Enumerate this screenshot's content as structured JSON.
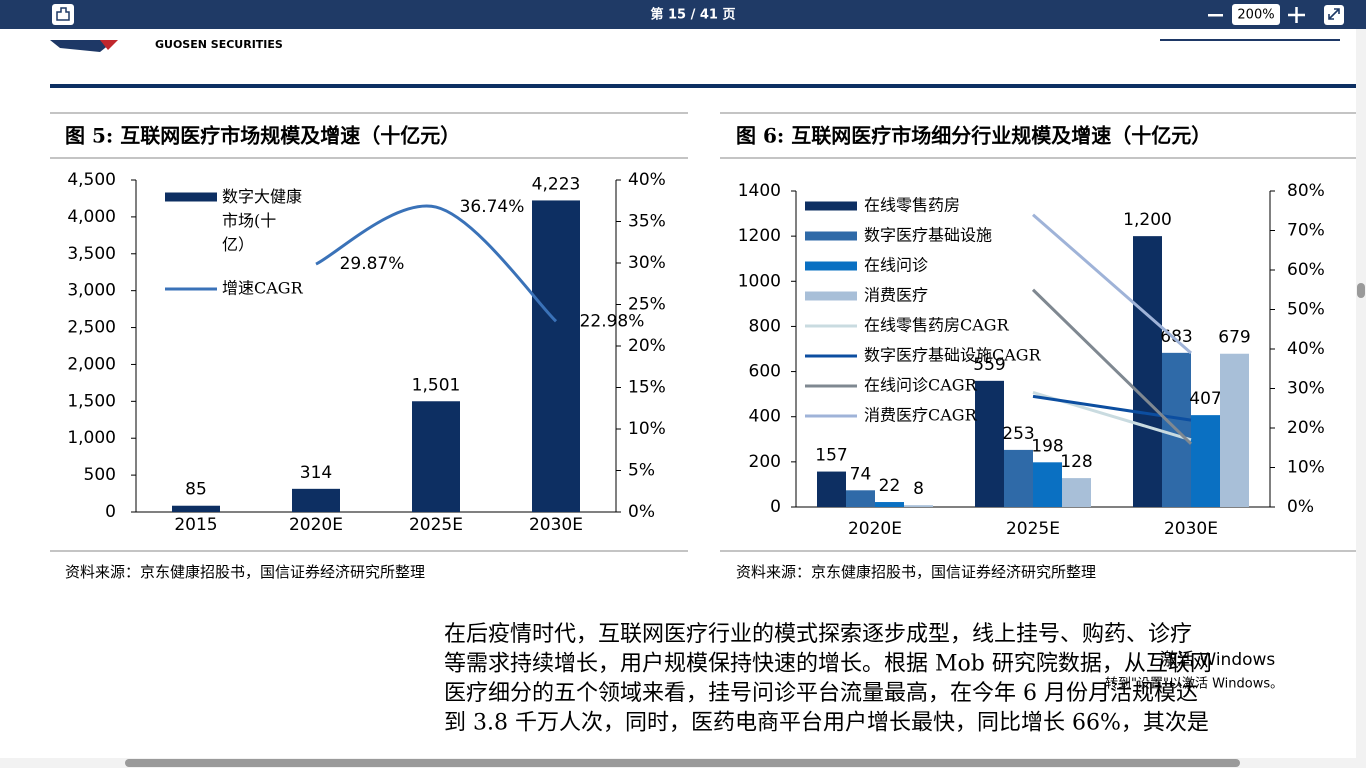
{
  "toolbar": {
    "page_label": "第 15 / 41 页",
    "zoom": "200%"
  },
  "header": {
    "company": "GUOSEN SECURITIES"
  },
  "chart_data": [
    {
      "type": "bar_line",
      "title": "图 5:  互联网医疗市场规模及增速（十亿元）",
      "source": "资料来源：京东健康招股书，国信证券经济研究所整理",
      "categories": [
        "2015",
        "2020E",
        "2025E",
        "2030E"
      ],
      "series": [
        {
          "name": "数字大健康市场(十亿）",
          "type": "bar",
          "color": "#0d2f62",
          "values": [
            85,
            314,
            1501,
            4223
          ],
          "value_labels": [
            "85",
            "314",
            "1,501",
            "4,223"
          ]
        },
        {
          "name": "增速CAGR",
          "type": "line",
          "axis": "y2",
          "color": "#3a72b8",
          "values": [
            null,
            29.87,
            36.74,
            22.98
          ],
          "value_labels": [
            null,
            "29.87%",
            "36.74%",
            "22.98%"
          ]
        }
      ],
      "ylim": [
        0,
        4500
      ],
      "yticks": [
        0,
        500,
        {
          "value": 1000,
          "label": "1,000"
        },
        {
          "value": 1500,
          "label": "1,500"
        },
        {
          "value": 2000,
          "label": "2,000"
        },
        {
          "value": 2500,
          "label": "2,500"
        },
        {
          "value": 3000,
          "label": "3,000"
        },
        {
          "value": 3500,
          "label": "3,500"
        },
        {
          "value": 4000,
          "label": "4,000"
        },
        {
          "value": 4500,
          "label": "4,500"
        }
      ],
      "y2lim": [
        0,
        40
      ],
      "y2ticks": [
        {
          "value": 0,
          "label": "0%"
        },
        {
          "value": 5,
          "label": "5%"
        },
        {
          "value": 10,
          "label": "10%"
        },
        {
          "value": 15,
          "label": "15%"
        },
        {
          "value": 20,
          "label": "20%"
        },
        {
          "value": 25,
          "label": "25%"
        },
        {
          "value": 30,
          "label": "30%"
        },
        {
          "value": 35,
          "label": "35%"
        },
        {
          "value": 40,
          "label": "40%"
        }
      ],
      "grid": false,
      "legend": "upper left"
    },
    {
      "type": "bar_line",
      "title": "图 6:  互联网医疗市场细分行业规模及增速（十亿元）",
      "source": "资料来源：京东健康招股书，国信证券经济研究所整理",
      "categories": [
        "2020E",
        "2025E",
        "2030E"
      ],
      "series": [
        {
          "name": "在线零售药房",
          "type": "bar",
          "color": "#0d2f62",
          "values": [
            157,
            559,
            1200
          ],
          "value_labels": [
            "157",
            "559",
            "1,200"
          ]
        },
        {
          "name": "数字医疗基础设施",
          "type": "bar",
          "color": "#2f6aa8",
          "values": [
            74,
            253,
            683
          ]
        },
        {
          "name": "在线问诊",
          "type": "bar",
          "color": "#0a70c2",
          "values": [
            22,
            198,
            407
          ]
        },
        {
          "name": "消费医疗",
          "type": "bar",
          "color": "#a8bfd8",
          "values": [
            8,
            128,
            679
          ]
        },
        {
          "name": "在线零售药房CAGR",
          "type": "line",
          "axis": "y2",
          "color": "#c9dbe0",
          "values": [
            null,
            29,
            17
          ]
        },
        {
          "name": "数字医疗基础设施CAGR",
          "type": "line",
          "axis": "y2",
          "color": "#0c4ea0",
          "values": [
            null,
            28,
            22
          ]
        },
        {
          "name": "在线问诊CAGR",
          "type": "line",
          "axis": "y2",
          "color": "#7f8891",
          "values": [
            null,
            55,
            16
          ]
        },
        {
          "name": "消费医疗CAGR",
          "type": "line",
          "axis": "y2",
          "color": "#9fb3d8",
          "values": [
            null,
            74,
            39
          ]
        }
      ],
      "ylim": [
        0,
        1400
      ],
      "yticks": [
        0,
        200,
        400,
        600,
        800,
        1000,
        1200,
        1400
      ],
      "y2lim": [
        0,
        80
      ],
      "y2ticks": [
        {
          "value": 0,
          "label": "0%"
        },
        {
          "value": 10,
          "label": "10%"
        },
        {
          "value": 20,
          "label": "20%"
        },
        {
          "value": 30,
          "label": "30%"
        },
        {
          "value": 40,
          "label": "40%"
        },
        {
          "value": 50,
          "label": "50%"
        },
        {
          "value": 60,
          "label": "60%"
        },
        {
          "value": 70,
          "label": "70%"
        },
        {
          "value": 80,
          "label": "80%"
        }
      ],
      "grid": false,
      "legend": "upper left"
    }
  ],
  "body_text": [
    "在后疫情时代，互联网医疗行业的模式探索逐步成型，线上挂号、购药、诊疗",
    "等需求持续增长，用户规模保持快速的增长。根据 Mob 研究院数据，从互联网",
    "医疗细分的五个领域来看，挂号问诊平台流量最高，在今年 6 月份月活规模达",
    "到 3.8 千万人次，同时，医药电商平台用户增长最快，同比增长 66%，其次是"
  ],
  "watermark": [
    "激活 Windows",
    "转到\"设置\"以激活 Windows。"
  ]
}
